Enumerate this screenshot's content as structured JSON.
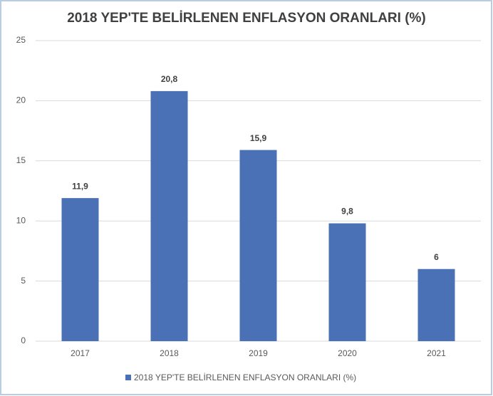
{
  "chart_data": {
    "type": "bar",
    "title": "2018 YEP'TE BELİRLENEN ENFLASYON ORANLARI (%)",
    "categories": [
      "2017",
      "2018",
      "2019",
      "2020",
      "2021"
    ],
    "series": [
      {
        "name": "2018 YEP'TE BELİRLENEN ENFLASYON ORANLARI (%)",
        "color": "#4a70b6",
        "values": [
          11.9,
          20.8,
          15.9,
          9.8,
          6
        ],
        "value_labels": [
          "11,9",
          "20,8",
          "15,9",
          "9,8",
          "6"
        ]
      }
    ],
    "ylim": [
      0,
      25
    ],
    "yticks": [
      0,
      5,
      10,
      15,
      20,
      25
    ],
    "grid": true,
    "legend": "bottom"
  }
}
